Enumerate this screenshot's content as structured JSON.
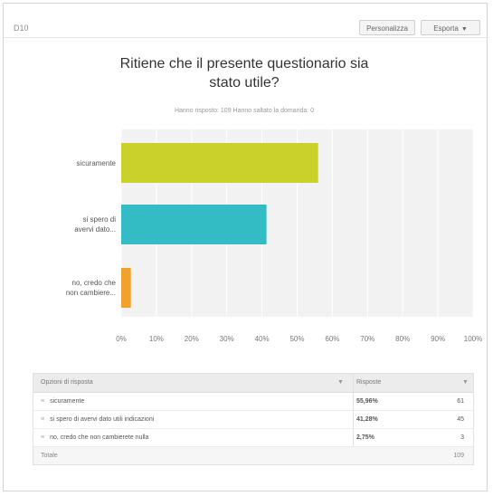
{
  "header": {
    "question_id": "D10",
    "customize_label": "Personalizza",
    "export_label": "Esporta",
    "export_caret": "▼"
  },
  "chart_title_line1": "Ritiene che il presente questionario sia",
  "chart_title_line2": "stato utile?",
  "chart_subtitle": "Hanno risposto: 109   Hanno saltato la domanda: 0",
  "chart_data": {
    "type": "bar",
    "orientation": "horizontal",
    "categories": [
      [
        "sicuramente"
      ],
      [
        "si spero di",
        "avervi dato..."
      ],
      [
        "no, credo che",
        "non cambiere..."
      ]
    ],
    "values": [
      55.96,
      41.28,
      2.75
    ],
    "colors": [
      "#c9d12a",
      "#34bcc4",
      "#f0a22c"
    ],
    "xlim": [
      0,
      100
    ],
    "ticks": [
      "0%",
      "10%",
      "20%",
      "30%",
      "40%",
      "50%",
      "60%",
      "70%",
      "80%",
      "90%",
      "100%"
    ],
    "grid": true
  },
  "table": {
    "header": {
      "option_label": "Opzioni di risposta",
      "sort_icon": "▼",
      "responses_label": "Risposte",
      "sort_icon2": "▼"
    },
    "rows": [
      {
        "handle": "≡",
        "label": "sicuramente",
        "percent": "55,96%",
        "count": "61"
      },
      {
        "handle": "≡",
        "label": "si spero di avervi dato utili indicazioni",
        "percent": "41,28%",
        "count": "45"
      },
      {
        "handle": "≡",
        "label": "no, credo che non cambierete nulla",
        "percent": "2,75%",
        "count": "3"
      }
    ],
    "total_label": "Totale",
    "total_count": "109"
  }
}
